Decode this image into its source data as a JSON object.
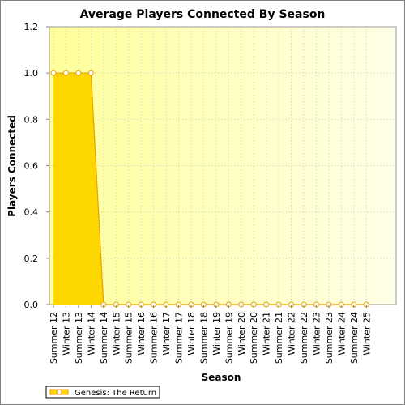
{
  "chart_data": {
    "type": "area",
    "title": "Average Players Connected By Season",
    "xlabel": "Season",
    "ylabel": "Players Connected",
    "ylim": [
      0,
      1.2
    ],
    "yticks": [
      "0.0",
      "0.2",
      "0.4",
      "0.6",
      "0.8",
      "1.0",
      "1.2"
    ],
    "grid": true,
    "legend_position": "bottom-left",
    "categories": [
      "Summer 12",
      "Winter 13",
      "Summer 13",
      "Winter 14",
      "Summer 14",
      "Winter 15",
      "Summer 15",
      "Winter 16",
      "Summer 16",
      "Winter 17",
      "Summer 17",
      "Winter 18",
      "Summer 18",
      "Winter 19",
      "Summer 19",
      "Winter 20",
      "Summer 20",
      "Winter 21",
      "Summer 21",
      "Winter 22",
      "Summer 22",
      "Winter 23",
      "Summer 23",
      "Winter 24",
      "Summer 24",
      "Winter 25"
    ],
    "series": [
      {
        "name": "Genesis: The Return",
        "color": "#ffd700",
        "line_color": "#e8a000",
        "values": [
          1.0,
          1.0,
          1.0,
          1.0,
          0.0,
          0.0,
          0.0,
          0.0,
          0.0,
          0.0,
          0.0,
          0.0,
          0.0,
          0.0,
          0.0,
          0.0,
          0.0,
          0.0,
          0.0,
          0.0,
          0.0,
          0.0,
          0.0,
          0.0,
          0.0,
          0.0
        ]
      }
    ]
  }
}
